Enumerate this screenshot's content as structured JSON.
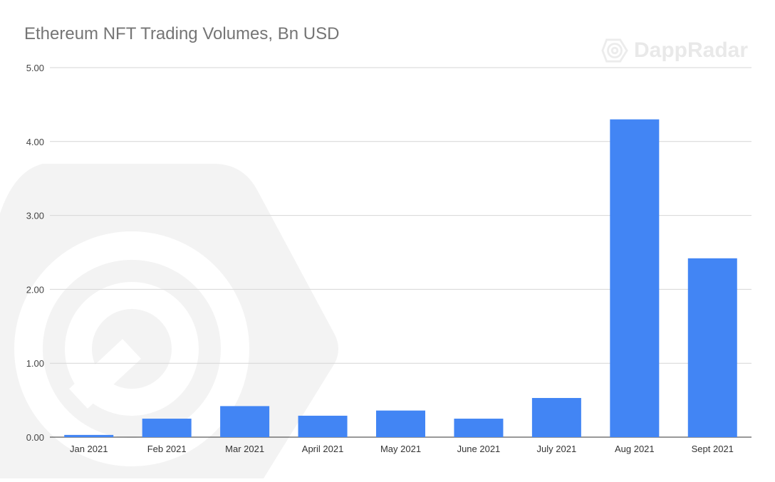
{
  "brand": {
    "name": "DappRadar",
    "color": "#e6e6e6"
  },
  "chart_data": {
    "type": "bar",
    "title": "Ethereum NFT Trading Volumes, Bn USD",
    "xlabel": "",
    "ylabel": "",
    "categories": [
      "Jan 2021",
      "Feb 2021",
      "Mar 2021",
      "April 2021",
      "May 2021",
      "June 2021",
      "July 2021",
      "Aug 2021",
      "Sept 2021"
    ],
    "values": [
      0.03,
      0.25,
      0.42,
      0.29,
      0.36,
      0.25,
      0.53,
      4.3,
      2.42
    ],
    "ylim": [
      0,
      5
    ],
    "yticks": [
      "0.00",
      "1.00",
      "2.00",
      "3.00",
      "4.00",
      "5.00"
    ],
    "grid": true,
    "legend": "none",
    "bar_color": "#4285f4"
  }
}
